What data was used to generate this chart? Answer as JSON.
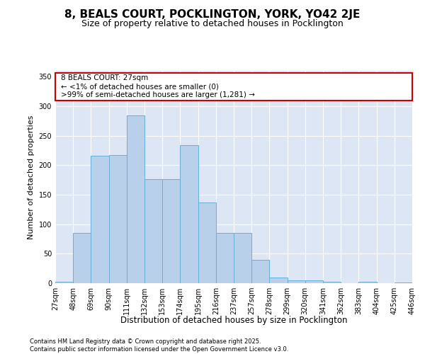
{
  "title": "8, BEALS COURT, POCKLINGTON, YORK, YO42 2JE",
  "subtitle": "Size of property relative to detached houses in Pocklington",
  "xlabel": "Distribution of detached houses by size in Pocklington",
  "ylabel": "Number of detached properties",
  "bar_values": [
    3,
    85,
    216,
    217,
    285,
    177,
    177,
    234,
    137,
    85,
    85,
    40,
    10,
    5,
    5,
    2,
    0,
    3,
    0,
    1
  ],
  "x_labels": [
    "27sqm",
    "48sqm",
    "69sqm",
    "90sqm",
    "111sqm",
    "132sqm",
    "153sqm",
    "174sqm",
    "195sqm",
    "216sqm",
    "237sqm",
    "257sqm",
    "278sqm",
    "299sqm",
    "320sqm",
    "341sqm",
    "362sqm",
    "383sqm",
    "404sqm",
    "425sqm",
    "446sqm"
  ],
  "bar_color": "#b8d0ea",
  "bar_edge_color": "#6aaed6",
  "bg_color": "#dce6f5",
  "annotation_text": "8 BEALS COURT: 27sqm\n← <1% of detached houses are smaller (0)\n>99% of semi-detached houses are larger (1,281) →",
  "annotation_box_color": "#cc0000",
  "ylim": [
    0,
    360
  ],
  "yticks": [
    0,
    50,
    100,
    150,
    200,
    250,
    300,
    350
  ],
  "footer_text": "Contains HM Land Registry data © Crown copyright and database right 2025.\nContains public sector information licensed under the Open Government Licence v3.0.",
  "title_fontsize": 11,
  "subtitle_fontsize": 9,
  "xlabel_fontsize": 8.5,
  "ylabel_fontsize": 8,
  "tick_fontsize": 7,
  "annotation_fontsize": 7.5,
  "footer_fontsize": 6
}
